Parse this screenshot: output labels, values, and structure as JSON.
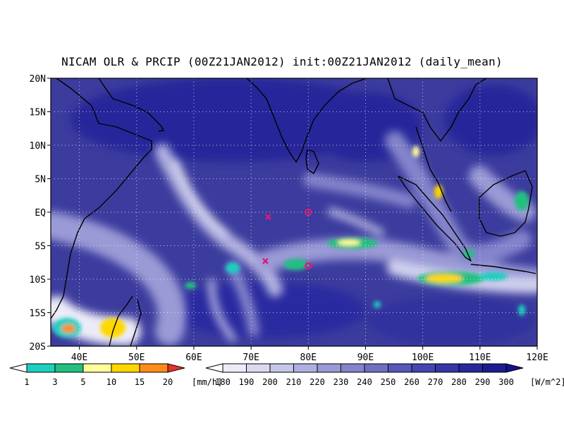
{
  "title": "NICAM OLR & PRCIP (00Z21JAN2012) init:00Z21JAN2012 (daily_mean)",
  "map": {
    "lon_range": [
      35,
      120
    ],
    "lat_range": [
      -20,
      20
    ],
    "lon_ticks": [
      "40E",
      "50E",
      "60E",
      "70E",
      "80E",
      "90E",
      "100E",
      "110E",
      "120E"
    ],
    "lat_ticks": [
      "20N",
      "15N",
      "10N",
      "5N",
      "EQ",
      "5S",
      "10S",
      "15S",
      "20S"
    ],
    "grid": "dotted",
    "ocean_color": "#3c3c9e",
    "markers": [
      {
        "type": "x",
        "lon": 73,
        "lat": -0.7,
        "color": "#e0187a"
      },
      {
        "type": "o",
        "lon": 80,
        "lat": 0,
        "color": "#e0187a"
      },
      {
        "type": "x",
        "lon": 72.5,
        "lat": -7.3,
        "color": "#e0187a"
      },
      {
        "type": "o",
        "lon": 80,
        "lat": -8,
        "color": "#e0187a"
      }
    ]
  },
  "precip_legend": {
    "labels": [
      "1",
      "3",
      "5",
      "10",
      "15",
      "20"
    ],
    "unit": "[mm/h]",
    "colors": [
      "#ffffff",
      "#1ecfc0",
      "#22c080",
      "#ffff99",
      "#ffd700",
      "#ff8c1a",
      "#e83030"
    ]
  },
  "olr_legend": {
    "labels": [
      "180",
      "190",
      "200",
      "210",
      "220",
      "230",
      "240",
      "250",
      "260",
      "270",
      "280",
      "290",
      "300"
    ],
    "unit": "[W/m^2]",
    "colors": [
      "#ffffff",
      "#ececf8",
      "#d9d9f0",
      "#c6c6e8",
      "#b0b0e0",
      "#9a9ad6",
      "#8484cc",
      "#6e6ec2",
      "#5858b8",
      "#4646ae",
      "#3636a4",
      "#28289a",
      "#1c1c90",
      "#12128a"
    ]
  }
}
